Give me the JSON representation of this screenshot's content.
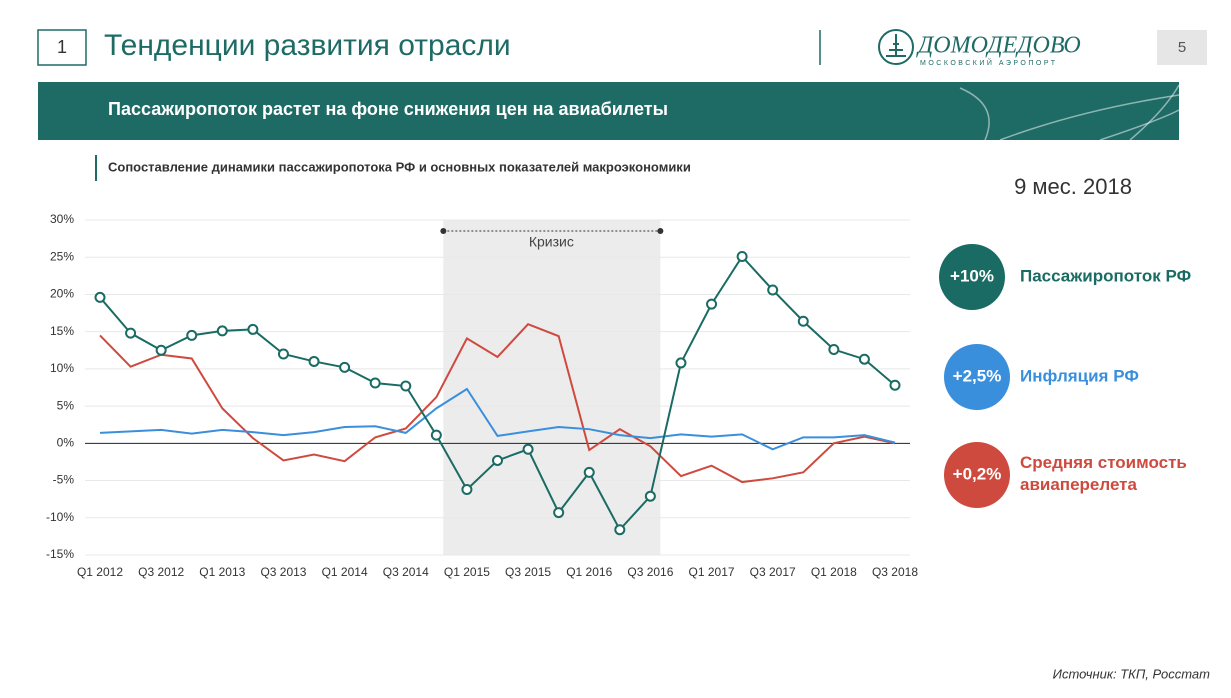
{
  "slide": {
    "number": "1",
    "title": "Тенденции развития отрасли",
    "logo": "ДОМОДЕДОВО",
    "logo_sub": "МОСКОВСКИЙ АЭРОПОРТ",
    "page": "5",
    "banner": "Пассажиропоток растет на фоне снижения цен на авиабилеты",
    "period": "9 мес. 2018",
    "badges": [
      "+10%",
      "+2,5%",
      "+0,2%"
    ],
    "source": "Источник: ТКП, Росстат"
  },
  "chart_data": {
    "type": "line",
    "title": "Сопоставление динамики пассажиропотока РФ и основных показателей макроэкономики",
    "categories": [
      "Q1 2012",
      null,
      "Q3 2012",
      null,
      "Q1 2013",
      null,
      "Q3 2013",
      null,
      "Q1 2014",
      null,
      "Q3 2014",
      null,
      "Q1 2015",
      null,
      "Q3 2015",
      null,
      "Q1 2016",
      null,
      "Q3 2016",
      null,
      "Q1 2017",
      null,
      "Q3 2017",
      null,
      "Q1 2018",
      null,
      "Q3 2018"
    ],
    "series": [
      {
        "name": "Пассажиропоток РФ",
        "color": "#1a6b63",
        "markers": true,
        "values": [
          19.6,
          14.8,
          12.5,
          14.5,
          15.1,
          15.3,
          12.0,
          11.0,
          10.2,
          8.1,
          7.7,
          1.1,
          -6.2,
          -2.3,
          -0.8,
          -9.3,
          -3.9,
          -11.6,
          -7.1,
          10.8,
          18.7,
          25.1,
          20.6,
          16.4,
          12.6,
          11.3,
          7.8
        ]
      },
      {
        "name": "Инфляция РФ",
        "color": "#3a8fdc",
        "markers": false,
        "values": [
          1.4,
          1.6,
          1.8,
          1.3,
          1.8,
          1.5,
          1.1,
          1.5,
          2.2,
          2.3,
          1.4,
          4.7,
          7.3,
          1.0,
          1.6,
          2.2,
          1.9,
          1.1,
          0.7,
          1.2,
          0.9,
          1.2,
          -0.8,
          0.8,
          0.8,
          1.1,
          0.1
        ]
      },
      {
        "name": "Средняя стоимость авиаперелета",
        "color": "#cf4a3e",
        "markers": false,
        "values": [
          14.5,
          10.3,
          11.9,
          11.4,
          4.7,
          0.7,
          -2.3,
          -1.5,
          -2.4,
          0.8,
          2.0,
          6.2,
          14.1,
          11.6,
          16.0,
          14.4,
          -0.9,
          1.9,
          -0.4,
          -4.4,
          -3.0,
          -5.2,
          -4.7,
          -3.9,
          0.0,
          0.9,
          0.0
        ]
      }
    ],
    "ylim": [
      -15,
      30
    ],
    "yticks": [
      {
        "value": -15,
        "label": "-15%"
      },
      {
        "value": -10,
        "label": "-10%"
      },
      {
        "value": -5,
        "label": "-5%"
      },
      {
        "value": 0,
        "label": "0%"
      },
      {
        "value": 5,
        "label": "5%"
      },
      {
        "value": 10,
        "label": "10%"
      },
      {
        "value": 15,
        "label": "15%"
      },
      {
        "value": 20,
        "label": "20%"
      },
      {
        "value": 25,
        "label": "25%"
      },
      {
        "value": 30,
        "label": "30%"
      }
    ],
    "grid": true,
    "annotation": "Кризис"
  }
}
